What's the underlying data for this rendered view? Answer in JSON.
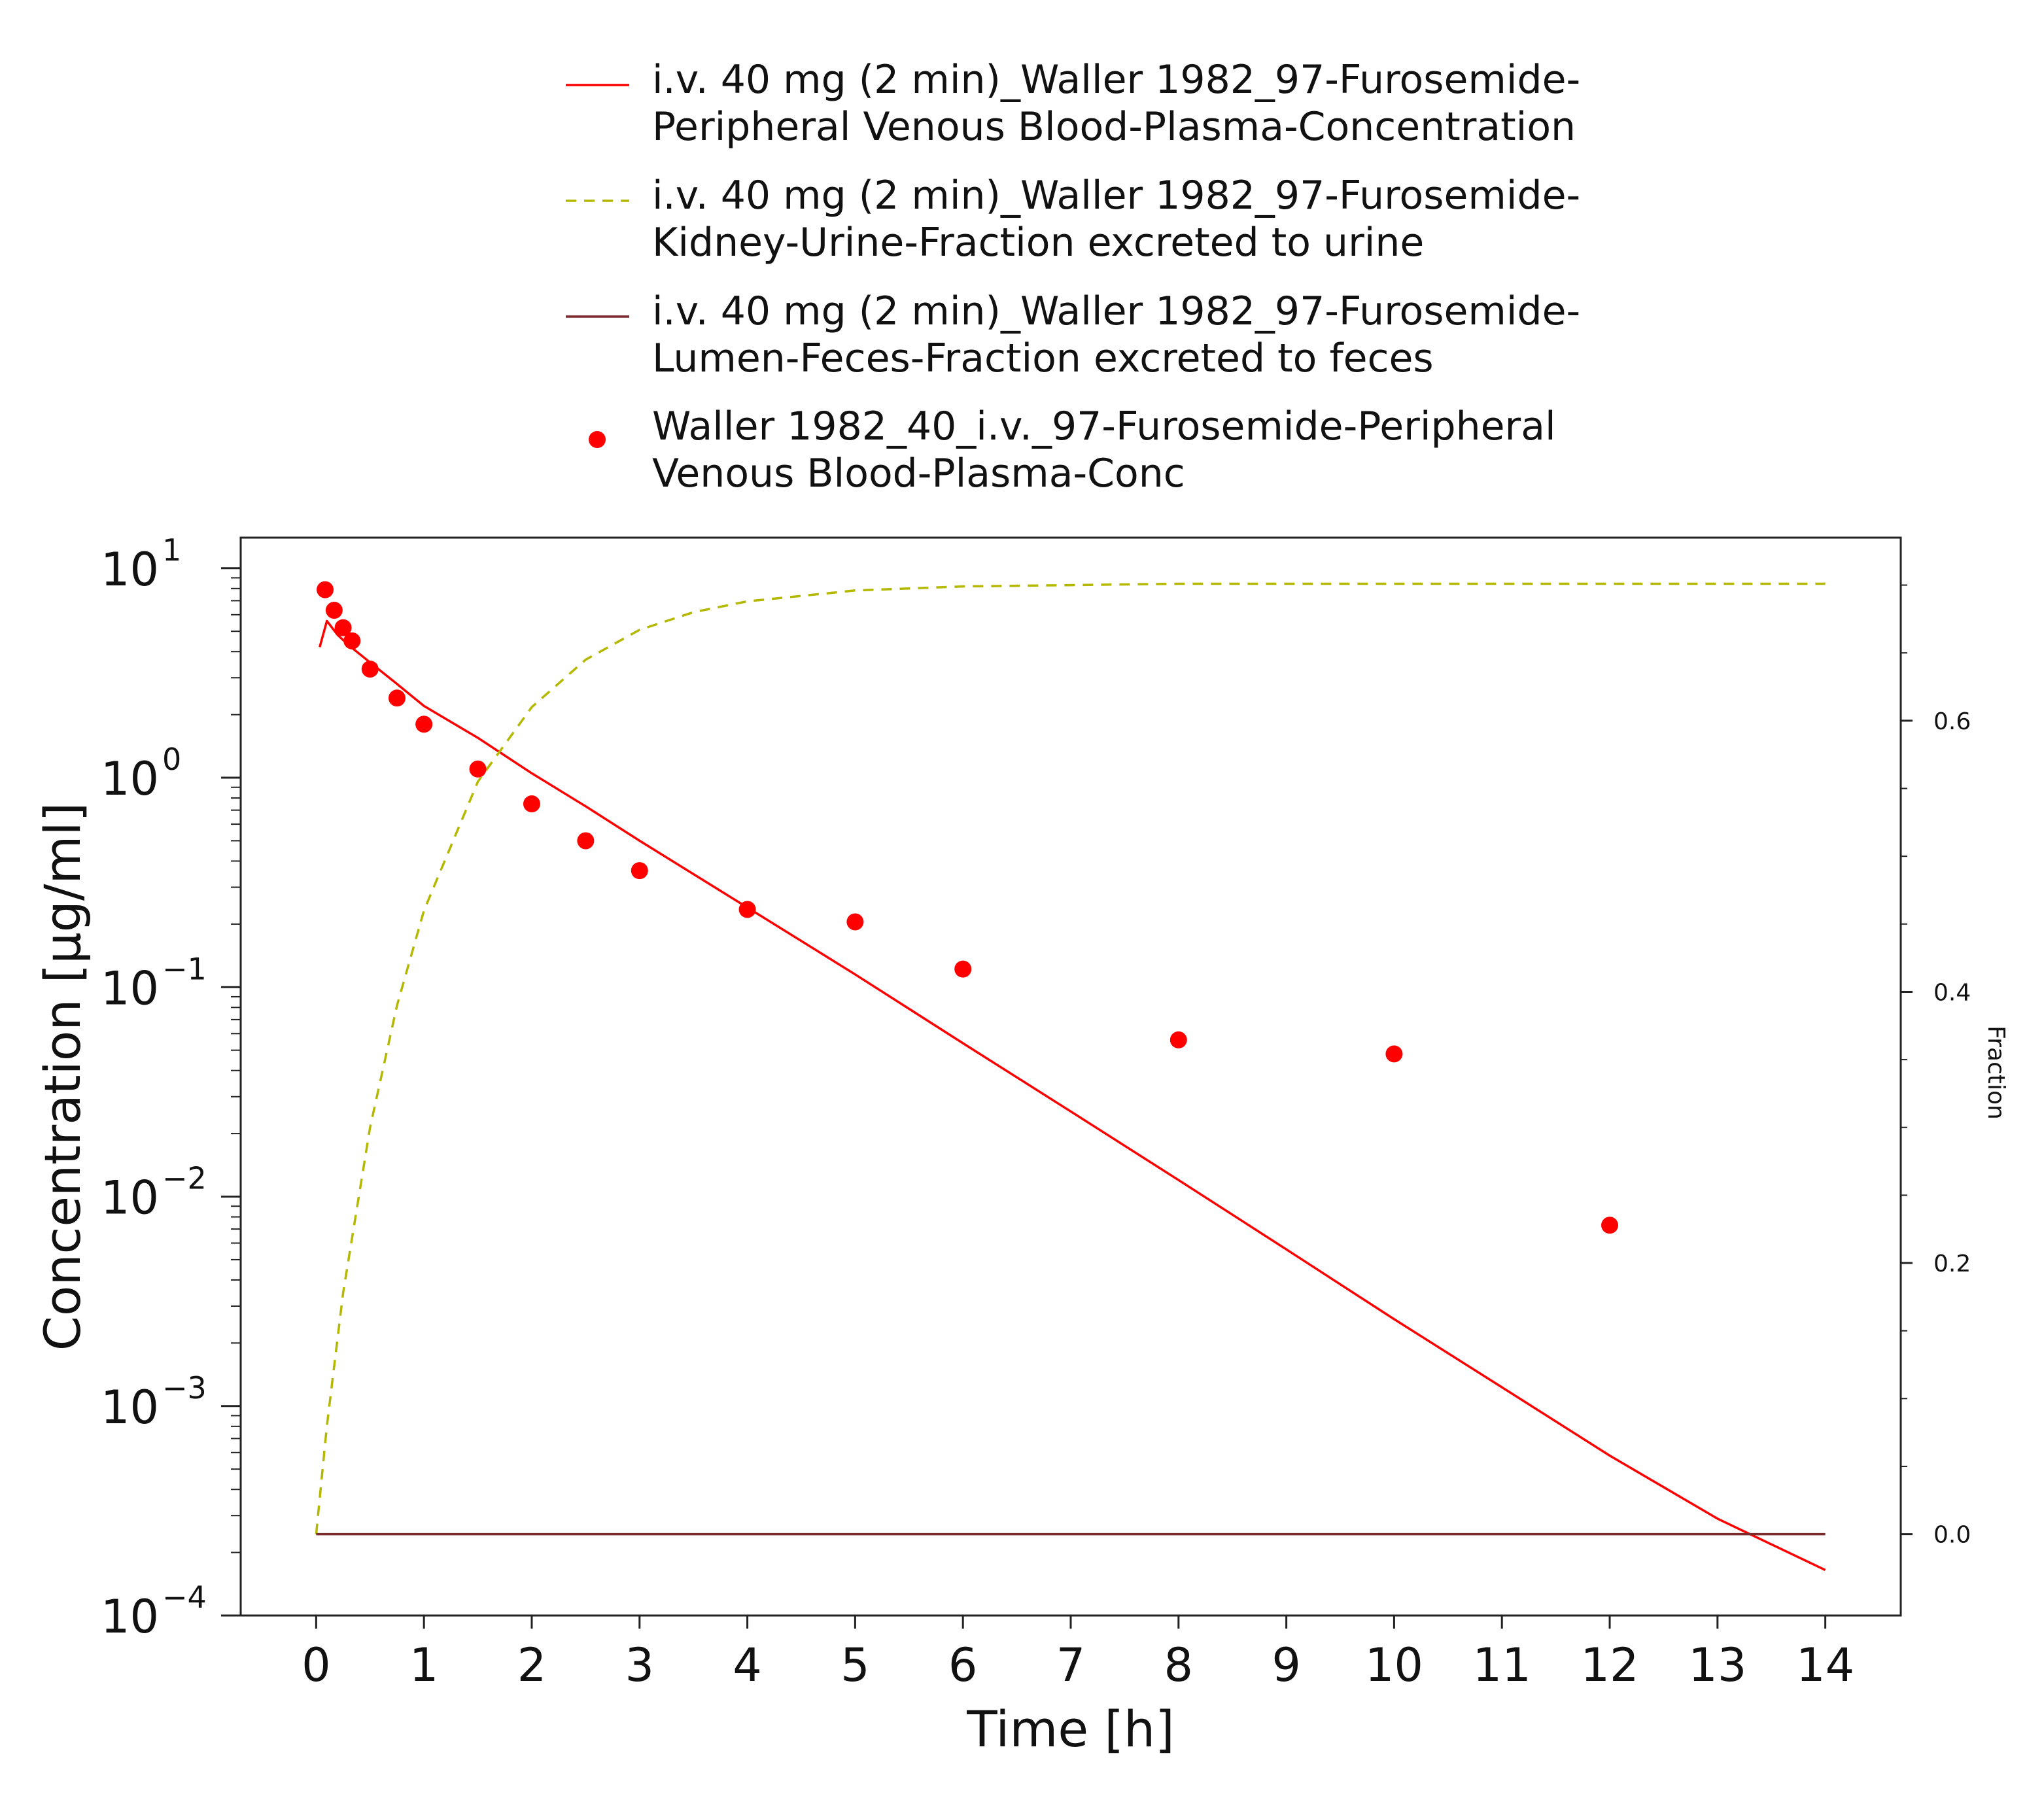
{
  "chart_data": {
    "type": "line",
    "title": "",
    "xlabel": "Time [h]",
    "ylabel": "Concentration [µg/ml]",
    "y2label": "Fraction",
    "xlim": [
      -0.7,
      14.7
    ],
    "ylim": [
      0.0001,
      14
    ],
    "yscale": "log",
    "y2lim": [
      -0.06,
      0.735
    ],
    "x_ticks": [
      0,
      1,
      2,
      3,
      4,
      5,
      6,
      7,
      8,
      9,
      10,
      11,
      12,
      13,
      14
    ],
    "y_ticks": [
      {
        "value": 0.0001,
        "base": "10",
        "exp": "−4"
      },
      {
        "value": 0.001,
        "base": "10",
        "exp": "−3"
      },
      {
        "value": 0.01,
        "base": "10",
        "exp": "−2"
      },
      {
        "value": 0.1,
        "base": "10",
        "exp": "−1"
      },
      {
        "value": 1,
        "base": "10",
        "exp": "0"
      },
      {
        "value": 10,
        "base": "10",
        "exp": "1"
      }
    ],
    "y2_ticks": [
      "0.0",
      "0.2",
      "0.4",
      "0.6"
    ],
    "legend_position": "top",
    "grid": false,
    "series": [
      {
        "name": "i.v. 40 mg (2 min)_Waller 1982_97-Furosemide-Peripheral Venous Blood-Plasma-Concentration",
        "legend_lines": [
          "i.v. 40 mg (2 min)_Waller 1982_97-Furosemide-",
          "Peripheral Venous Blood-Plasma-Concentration"
        ],
        "kind": "line",
        "axis": "left",
        "color": "#ff0000",
        "dash": "solid",
        "x": [
          0.033,
          0.1,
          0.2,
          0.3,
          0.5,
          0.75,
          1,
          1.5,
          2,
          2.5,
          3,
          4,
          5,
          6,
          7,
          8,
          9,
          10,
          11,
          12,
          13,
          14
        ],
        "y": [
          4.2,
          5.6,
          4.8,
          4.3,
          3.55,
          2.8,
          2.2,
          1.55,
          1.05,
          0.73,
          0.5,
          0.24,
          0.115,
          0.054,
          0.0255,
          0.012,
          0.0056,
          0.0026,
          0.00123,
          0.00058,
          0.00029,
          0.000165
        ]
      },
      {
        "name": "i.v. 40 mg (2 min)_Waller 1982_97-Furosemide-Kidney-Urine-Fraction excreted to urine",
        "legend_lines": [
          "i.v. 40 mg (2 min)_Waller 1982_97-Furosemide-",
          "Kidney-Urine-Fraction excreted to urine"
        ],
        "kind": "line",
        "axis": "right",
        "color": "#b5b800",
        "dash": "dashed",
        "x": [
          0,
          0.1,
          0.25,
          0.5,
          0.75,
          1,
          1.5,
          2,
          2.5,
          3,
          3.5,
          4,
          5,
          6,
          7,
          8,
          10,
          12,
          14
        ],
        "y": [
          0,
          0.08,
          0.178,
          0.3,
          0.39,
          0.46,
          0.555,
          0.61,
          0.645,
          0.667,
          0.68,
          0.688,
          0.696,
          0.699,
          0.7,
          0.701,
          0.701,
          0.701,
          0.701
        ]
      },
      {
        "name": "i.v. 40 mg (2 min)_Waller 1982_97-Furosemide-Lumen-Feces-Fraction excreted to feces",
        "legend_lines": [
          "i.v. 40 mg (2 min)_Waller 1982_97-Furosemide-",
          "Lumen-Feces-Fraction excreted to feces"
        ],
        "kind": "line",
        "axis": "right",
        "color": "#7b2b2b",
        "dash": "solid",
        "x": [
          0,
          14
        ],
        "y": [
          0,
          0
        ]
      },
      {
        "name": "Waller 1982_40_i.v._97-Furosemide-Peripheral Venous Blood-Plasma-Conc",
        "legend_lines": [
          "Waller 1982_40_i.v._97-Furosemide-Peripheral",
          "Venous Blood-Plasma-Conc"
        ],
        "kind": "scatter",
        "axis": "left",
        "color": "#ff0000",
        "x": [
          0.083,
          0.167,
          0.25,
          0.333,
          0.5,
          0.75,
          1,
          1.5,
          2,
          2.5,
          3,
          4,
          5,
          6,
          8,
          10,
          12
        ],
        "y": [
          7.9,
          6.3,
          5.2,
          4.5,
          3.3,
          2.4,
          1.8,
          1.1,
          0.75,
          0.5,
          0.36,
          0.235,
          0.205,
          0.122,
          0.056,
          0.048,
          0.0073
        ]
      }
    ]
  }
}
